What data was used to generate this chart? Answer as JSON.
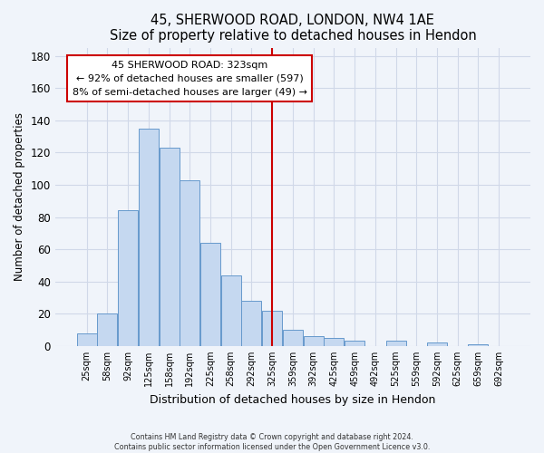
{
  "title": "45, SHERWOOD ROAD, LONDON, NW4 1AE",
  "subtitle": "Size of property relative to detached houses in Hendon",
  "xlabel": "Distribution of detached houses by size in Hendon",
  "ylabel": "Number of detached properties",
  "bar_labels": [
    "25sqm",
    "58sqm",
    "92sqm",
    "125sqm",
    "158sqm",
    "192sqm",
    "225sqm",
    "258sqm",
    "292sqm",
    "325sqm",
    "359sqm",
    "392sqm",
    "425sqm",
    "459sqm",
    "492sqm",
    "525sqm",
    "559sqm",
    "592sqm",
    "625sqm",
    "659sqm",
    "692sqm"
  ],
  "bar_values": [
    8,
    20,
    84,
    135,
    123,
    103,
    64,
    44,
    28,
    22,
    10,
    6,
    5,
    3,
    0,
    3,
    0,
    2,
    0,
    1,
    0
  ],
  "bar_color": "#c5d8f0",
  "bar_edge_color": "#6699cc",
  "vline_index": 9,
  "vline_color": "#cc0000",
  "annotation_title": "45 SHERWOOD ROAD: 323sqm",
  "annotation_line1": "← 92% of detached houses are smaller (597)",
  "annotation_line2": "8% of semi-detached houses are larger (49) →",
  "annotation_box_color": "#ffffff",
  "annotation_box_edge": "#cc0000",
  "ylim": [
    0,
    180
  ],
  "yticks": [
    0,
    20,
    40,
    60,
    80,
    100,
    120,
    140,
    160,
    180
  ],
  "footer1": "Contains HM Land Registry data © Crown copyright and database right 2024.",
  "footer2": "Contains public sector information licensed under the Open Government Licence v3.0.",
  "bg_color": "#f0f4fa",
  "grid_color": "#d0d8e8"
}
